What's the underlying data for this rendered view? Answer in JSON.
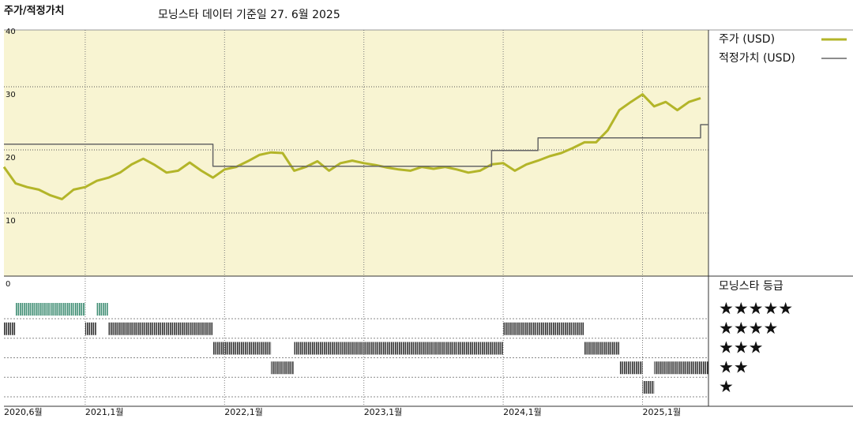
{
  "chart_data": {
    "type": "line",
    "title": "주가/적정가치",
    "subtitle": "모닝스타 데이터 기준일 27. 6월 2025",
    "x": [
      "2020-06",
      "2020-07",
      "2020-08",
      "2020-09",
      "2020-10",
      "2020-11",
      "2020-12",
      "2021-01",
      "2021-02",
      "2021-03",
      "2021-04",
      "2021-05",
      "2021-06",
      "2021-07",
      "2021-08",
      "2021-09",
      "2021-10",
      "2021-11",
      "2021-12",
      "2022-01",
      "2022-02",
      "2022-03",
      "2022-04",
      "2022-05",
      "2022-06",
      "2022-07",
      "2022-08",
      "2022-09",
      "2022-10",
      "2022-11",
      "2022-12",
      "2023-01",
      "2023-02",
      "2023-03",
      "2023-04",
      "2023-05",
      "2023-06",
      "2023-07",
      "2023-08",
      "2023-09",
      "2023-10",
      "2023-11",
      "2023-12",
      "2024-01",
      "2024-02",
      "2024-03",
      "2024-04",
      "2024-05",
      "2024-06",
      "2024-07",
      "2024-08",
      "2024-09",
      "2024-10",
      "2024-11",
      "2024-12",
      "2025-01",
      "2025-02",
      "2025-03",
      "2025-04",
      "2025-05",
      "2025-06"
    ],
    "series": [
      {
        "name": "주가 (USD)",
        "color": "#b3b529",
        "width": 3,
        "values": [
          17.3,
          14.7,
          14.1,
          13.7,
          12.8,
          12.2,
          13.7,
          14.1,
          15.1,
          15.6,
          16.4,
          17.7,
          18.6,
          17.6,
          16.4,
          16.7,
          18.0,
          16.7,
          15.6,
          16.9,
          17.3,
          18.2,
          19.2,
          19.6,
          19.5,
          16.7,
          17.3,
          18.2,
          16.7,
          17.9,
          18.3,
          17.9,
          17.6,
          17.2,
          16.9,
          16.7,
          17.3,
          17.0,
          17.3,
          16.9,
          16.4,
          16.7,
          17.7,
          17.9,
          16.7,
          17.7,
          18.3,
          19.0,
          19.5,
          20.3,
          21.2,
          21.2,
          23.1,
          26.3,
          27.6,
          28.8,
          26.9,
          27.6,
          26.3,
          27.6,
          28.2
        ]
      },
      {
        "name": "적정가치 (USD)",
        "color": "#666666",
        "width": 1.5,
        "step": true,
        "values": [
          20.9,
          20.9,
          20.9,
          20.9,
          20.9,
          20.9,
          20.9,
          20.9,
          20.9,
          20.9,
          20.9,
          20.9,
          20.9,
          20.9,
          20.9,
          20.9,
          20.9,
          20.9,
          17.4,
          17.4,
          17.4,
          17.4,
          17.4,
          17.4,
          17.4,
          17.4,
          17.4,
          17.4,
          17.4,
          17.4,
          17.4,
          17.4,
          17.4,
          17.4,
          17.4,
          17.4,
          17.4,
          17.4,
          17.4,
          17.4,
          17.4,
          17.4,
          19.9,
          19.9,
          19.9,
          19.9,
          21.9,
          21.9,
          21.9,
          21.9,
          21.9,
          21.9,
          21.9,
          21.9,
          21.9,
          21.9,
          21.9,
          21.9,
          21.9,
          21.9,
          24.0
        ]
      }
    ],
    "ylim": [
      0,
      40
    ],
    "yticks": [
      0,
      10,
      20,
      30,
      40
    ],
    "xticks": [
      {
        "value": "2020-06",
        "label": "2020,6월"
      },
      {
        "value": "2021-01",
        "label": "2021,1월"
      },
      {
        "value": "2022-01",
        "label": "2022,1월"
      },
      {
        "value": "2023-01",
        "label": "2023,1월"
      },
      {
        "value": "2024-01",
        "label": "2024,1월"
      },
      {
        "value": "2025-01",
        "label": "2025,1월"
      }
    ],
    "grid": true,
    "background": "#f8f4d2",
    "rating": {
      "title": "모닝스타 등급",
      "top_color": "#3d8c72",
      "color": "#333333",
      "levels": [
        {
          "value": 5,
          "label": "★★★★★"
        },
        {
          "value": 4,
          "label": "★★★★"
        },
        {
          "value": 3,
          "label": "★★★"
        },
        {
          "value": 2,
          "label": "★★"
        },
        {
          "value": 1,
          "label": "★"
        }
      ],
      "values": [
        4,
        5,
        5,
        5,
        5,
        5,
        5,
        4,
        5,
        4,
        4,
        4,
        4,
        4,
        4,
        4,
        4,
        4,
        3,
        3,
        3,
        3,
        3,
        2,
        2,
        3,
        3,
        3,
        3,
        3,
        3,
        3,
        3,
        3,
        3,
        3,
        3,
        3,
        3,
        3,
        3,
        3,
        3,
        4,
        4,
        4,
        4,
        4,
        4,
        4,
        3,
        3,
        3,
        2,
        2,
        1,
        2,
        2,
        2,
        2,
        2
      ]
    }
  }
}
